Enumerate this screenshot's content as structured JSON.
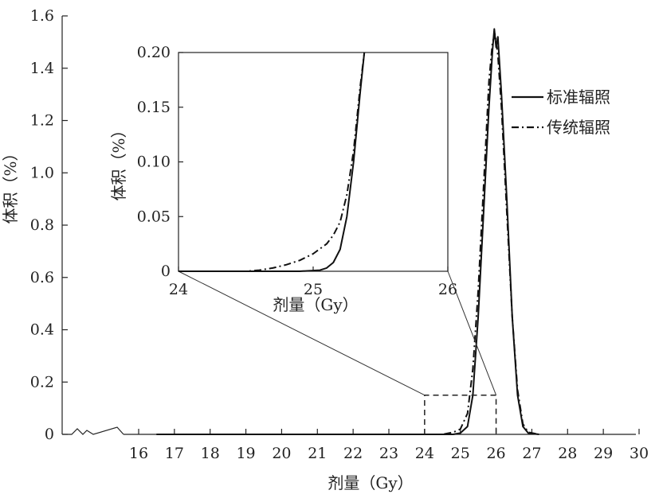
{
  "chart_data": [
    {
      "type": "line",
      "xlabel": "剂量（Gy）",
      "ylabel": "体积（%）",
      "xlim": [
        14.2,
        30
      ],
      "ylim": [
        0,
        1.6
      ],
      "x_ticks": [
        "16",
        "17",
        "18",
        "19",
        "20",
        "21",
        "22",
        "23",
        "24",
        "25",
        "26",
        "27",
        "28",
        "29",
        "30"
      ],
      "y_ticks": [
        "0",
        "0.2",
        "0.4",
        "0.6",
        "0.8",
        "1.0",
        "1.2",
        "1.4",
        "1.6"
      ],
      "x_axis_break": true,
      "legend_position": "right",
      "series": [
        {
          "name": "标准辐照",
          "style": "solid",
          "color": "#111111",
          "points": [
            [
              16.5,
              0
            ],
            [
              24.8,
              0
            ],
            [
              25.0,
              0.005
            ],
            [
              25.2,
              0.03
            ],
            [
              25.35,
              0.15
            ],
            [
              25.5,
              0.45
            ],
            [
              25.65,
              0.85
            ],
            [
              25.8,
              1.25
            ],
            [
              25.9,
              1.47
            ],
            [
              25.95,
              1.55
            ],
            [
              26.0,
              1.48
            ],
            [
              26.05,
              1.52
            ],
            [
              26.15,
              1.3
            ],
            [
              26.3,
              0.9
            ],
            [
              26.45,
              0.45
            ],
            [
              26.6,
              0.15
            ],
            [
              26.75,
              0.03
            ],
            [
              26.9,
              0.005
            ],
            [
              27.2,
              0
            ]
          ]
        },
        {
          "name": "传统辐照",
          "style": "dashdot",
          "color": "#111111",
          "points": [
            [
              16.5,
              0
            ],
            [
              24.5,
              0
            ],
            [
              24.8,
              0.008
            ],
            [
              25.0,
              0.02
            ],
            [
              25.2,
              0.08
            ],
            [
              25.35,
              0.25
            ],
            [
              25.5,
              0.55
            ],
            [
              25.65,
              0.95
            ],
            [
              25.8,
              1.35
            ],
            [
              25.9,
              1.5
            ],
            [
              25.97,
              1.53
            ],
            [
              26.05,
              1.45
            ],
            [
              26.15,
              1.25
            ],
            [
              26.3,
              0.85
            ],
            [
              26.45,
              0.45
            ],
            [
              26.6,
              0.17
            ],
            [
              26.75,
              0.04
            ],
            [
              26.9,
              0.008
            ],
            [
              27.2,
              0
            ]
          ]
        }
      ],
      "zoom_box": {
        "x": [
          24,
          26
        ],
        "y": [
          0,
          0.15
        ]
      }
    },
    {
      "type": "line",
      "role": "inset",
      "xlabel": "剂量（Gy）",
      "ylabel": "体积（%）",
      "xlim": [
        24,
        26
      ],
      "ylim": [
        0,
        0.2
      ],
      "x_ticks": [
        "24",
        "25",
        "26"
      ],
      "y_ticks": [
        "0",
        "0.05",
        "0.10",
        "0.15",
        "0.20"
      ],
      "series": [
        {
          "name": "标准辐照",
          "style": "solid",
          "points": [
            [
              24.0,
              0
            ],
            [
              24.9,
              0
            ],
            [
              25.05,
              0.001
            ],
            [
              25.1,
              0.003
            ],
            [
              25.15,
              0.008
            ],
            [
              25.2,
              0.02
            ],
            [
              25.25,
              0.05
            ],
            [
              25.3,
              0.1
            ],
            [
              25.35,
              0.165
            ],
            [
              25.38,
              0.2
            ]
          ]
        },
        {
          "name": "传统辐照",
          "style": "dashdot",
          "points": [
            [
              24.0,
              0
            ],
            [
              24.5,
              0
            ],
            [
              24.6,
              0.001
            ],
            [
              24.7,
              0.003
            ],
            [
              24.8,
              0.006
            ],
            [
              24.9,
              0.01
            ],
            [
              25.0,
              0.016
            ],
            [
              25.1,
              0.025
            ],
            [
              25.15,
              0.033
            ],
            [
              25.2,
              0.045
            ],
            [
              25.25,
              0.07
            ],
            [
              25.3,
              0.11
            ],
            [
              25.35,
              0.17
            ],
            [
              25.38,
              0.2
            ]
          ]
        }
      ]
    }
  ]
}
